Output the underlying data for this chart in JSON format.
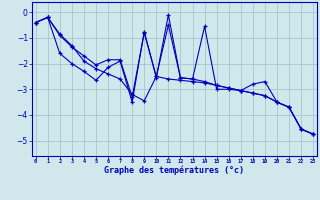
{
  "xlabel": "Graphe des températures (°c)",
  "background_color": "#d0e8ec",
  "line_color": "#0000bb",
  "grid_color": "#a0c8cc",
  "x_ticks": [
    0,
    1,
    2,
    3,
    4,
    5,
    6,
    7,
    8,
    9,
    10,
    11,
    12,
    13,
    14,
    15,
    16,
    17,
    18,
    19,
    20,
    21,
    22,
    23
  ],
  "ylim": [
    -5.6,
    0.4
  ],
  "xlim": [
    -0.3,
    23.3
  ],
  "line1_y": [
    -0.4,
    -0.2,
    -0.85,
    -1.3,
    -1.9,
    -2.2,
    -2.4,
    -2.6,
    -3.2,
    -3.45,
    -2.5,
    -2.6,
    -2.65,
    -2.7,
    -2.75,
    -2.85,
    -2.95,
    -3.05,
    -3.15,
    -3.25,
    -3.5,
    -3.7,
    -4.55,
    -4.75
  ],
  "line2_y": [
    -0.4,
    -0.2,
    -1.6,
    -2.0,
    -2.3,
    -2.65,
    -2.15,
    -1.9,
    -3.5,
    -0.75,
    -2.55,
    -0.1,
    -2.55,
    -2.6,
    -2.7,
    -2.85,
    -2.95,
    -3.05,
    -3.15,
    -3.25,
    -3.5,
    -3.7,
    -4.55,
    -4.75
  ],
  "line3_y": [
    -0.4,
    -0.2,
    -0.9,
    -1.35,
    -1.7,
    -2.05,
    -1.85,
    -1.85,
    -3.3,
    -0.8,
    -2.5,
    -0.5,
    -2.55,
    -2.6,
    -0.55,
    -3.0,
    -3.0,
    -3.05,
    -2.8,
    -2.7,
    -3.5,
    -3.7,
    -4.55,
    -4.75
  ]
}
